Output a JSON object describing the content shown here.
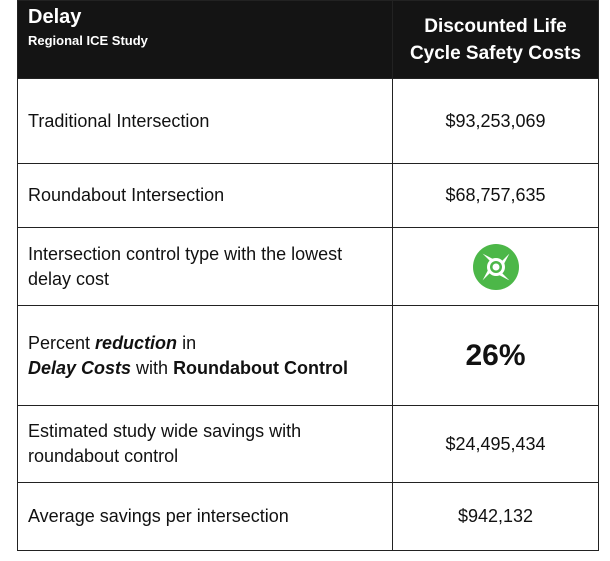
{
  "header": {
    "title": "Delay",
    "subtitle": "Regional ICE Study",
    "column": "Discounted Life Cycle Safety Costs"
  },
  "table": {
    "rows": [
      [
        "Traditional Intersection",
        "$93,253,069"
      ],
      [
        "Roundabout Intersection",
        "$68,757,635"
      ],
      [
        "Intersection control type with the lowest delay cost"
      ],
      [
        [
          "Percent ",
          "reduction",
          " in",
          "Delay Costs",
          " with ",
          "Roundabout Control"
        ],
        "26%"
      ],
      [
        "Estimated study wide savings with roundabout control",
        "$24,495,434"
      ],
      [
        "Average savings per intersection",
        "$942,132"
      ]
    ]
  }
}
